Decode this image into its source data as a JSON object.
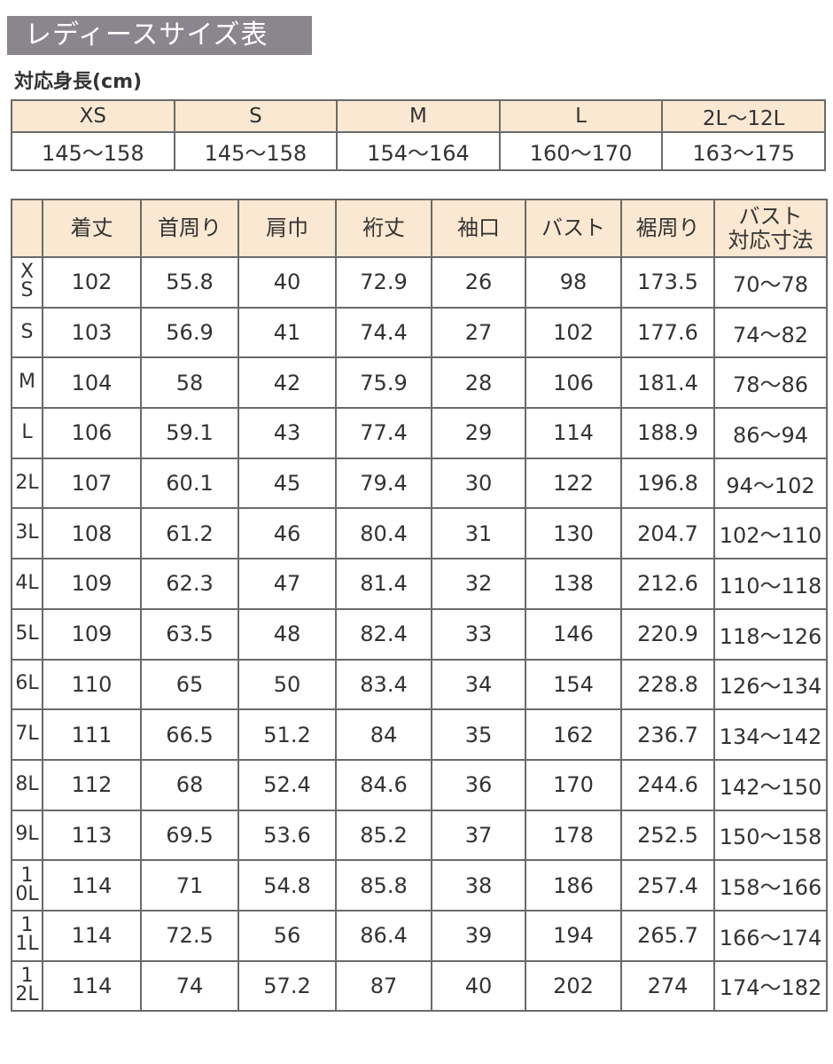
{
  "header": {
    "title": "レディースサイズ表",
    "subtitle": "対応身長(cm)"
  },
  "height_table": {
    "sizes": [
      "XS",
      "S",
      "M",
      "L",
      "2L〜12L"
    ],
    "heights": [
      "145〜158",
      "145〜158",
      "154〜164",
      "160〜170",
      "163〜175"
    ]
  },
  "size_table": {
    "columns": [
      "着丈",
      "首周り",
      "肩巾",
      "裄丈",
      "袖口",
      "バスト",
      "裾周り",
      [
        "バスト",
        "対応寸法"
      ]
    ],
    "rows": [
      {
        "size": "XS",
        "values": [
          "102",
          "55.8",
          "40",
          "72.9",
          "26",
          "98",
          "173.5",
          "70〜78"
        ]
      },
      {
        "size": "S",
        "values": [
          "103",
          "56.9",
          "41",
          "74.4",
          "27",
          "102",
          "177.6",
          "74〜82"
        ]
      },
      {
        "size": "M",
        "values": [
          "104",
          "58",
          "42",
          "75.9",
          "28",
          "106",
          "181.4",
          "78〜86"
        ]
      },
      {
        "size": "L",
        "values": [
          "106",
          "59.1",
          "43",
          "77.4",
          "29",
          "114",
          "188.9",
          "86〜94"
        ]
      },
      {
        "size": "2L",
        "values": [
          "107",
          "60.1",
          "45",
          "79.4",
          "30",
          "122",
          "196.8",
          "94〜102"
        ]
      },
      {
        "size": "3L",
        "values": [
          "108",
          "61.2",
          "46",
          "80.4",
          "31",
          "130",
          "204.7",
          "102〜110"
        ]
      },
      {
        "size": "4L",
        "values": [
          "109",
          "62.3",
          "47",
          "81.4",
          "32",
          "138",
          "212.6",
          "110〜118"
        ]
      },
      {
        "size": "5L",
        "values": [
          "109",
          "63.5",
          "48",
          "82.4",
          "33",
          "146",
          "220.9",
          "118〜126"
        ]
      },
      {
        "size": "6L",
        "values": [
          "110",
          "65",
          "50",
          "83.4",
          "34",
          "154",
          "228.8",
          "126〜134"
        ]
      },
      {
        "size": "7L",
        "values": [
          "111",
          "66.5",
          "51.2",
          "84",
          "35",
          "162",
          "236.7",
          "134〜142"
        ]
      },
      {
        "size": "8L",
        "values": [
          "112",
          "68",
          "52.4",
          "84.6",
          "36",
          "170",
          "244.6",
          "142〜150"
        ]
      },
      {
        "size": "9L",
        "values": [
          "113",
          "69.5",
          "53.6",
          "85.2",
          "37",
          "178",
          "252.5",
          "150〜158"
        ]
      },
      {
        "size": "10L",
        "values": [
          "114",
          "71",
          "54.8",
          "85.8",
          "38",
          "186",
          "257.4",
          "158〜166"
        ]
      },
      {
        "size": "11L",
        "values": [
          "114",
          "72.5",
          "56",
          "86.4",
          "39",
          "194",
          "265.7",
          "166〜174"
        ]
      },
      {
        "size": "12L",
        "values": [
          "114",
          "74",
          "57.2",
          "87",
          "40",
          "202",
          "274",
          "174〜182"
        ]
      }
    ]
  }
}
